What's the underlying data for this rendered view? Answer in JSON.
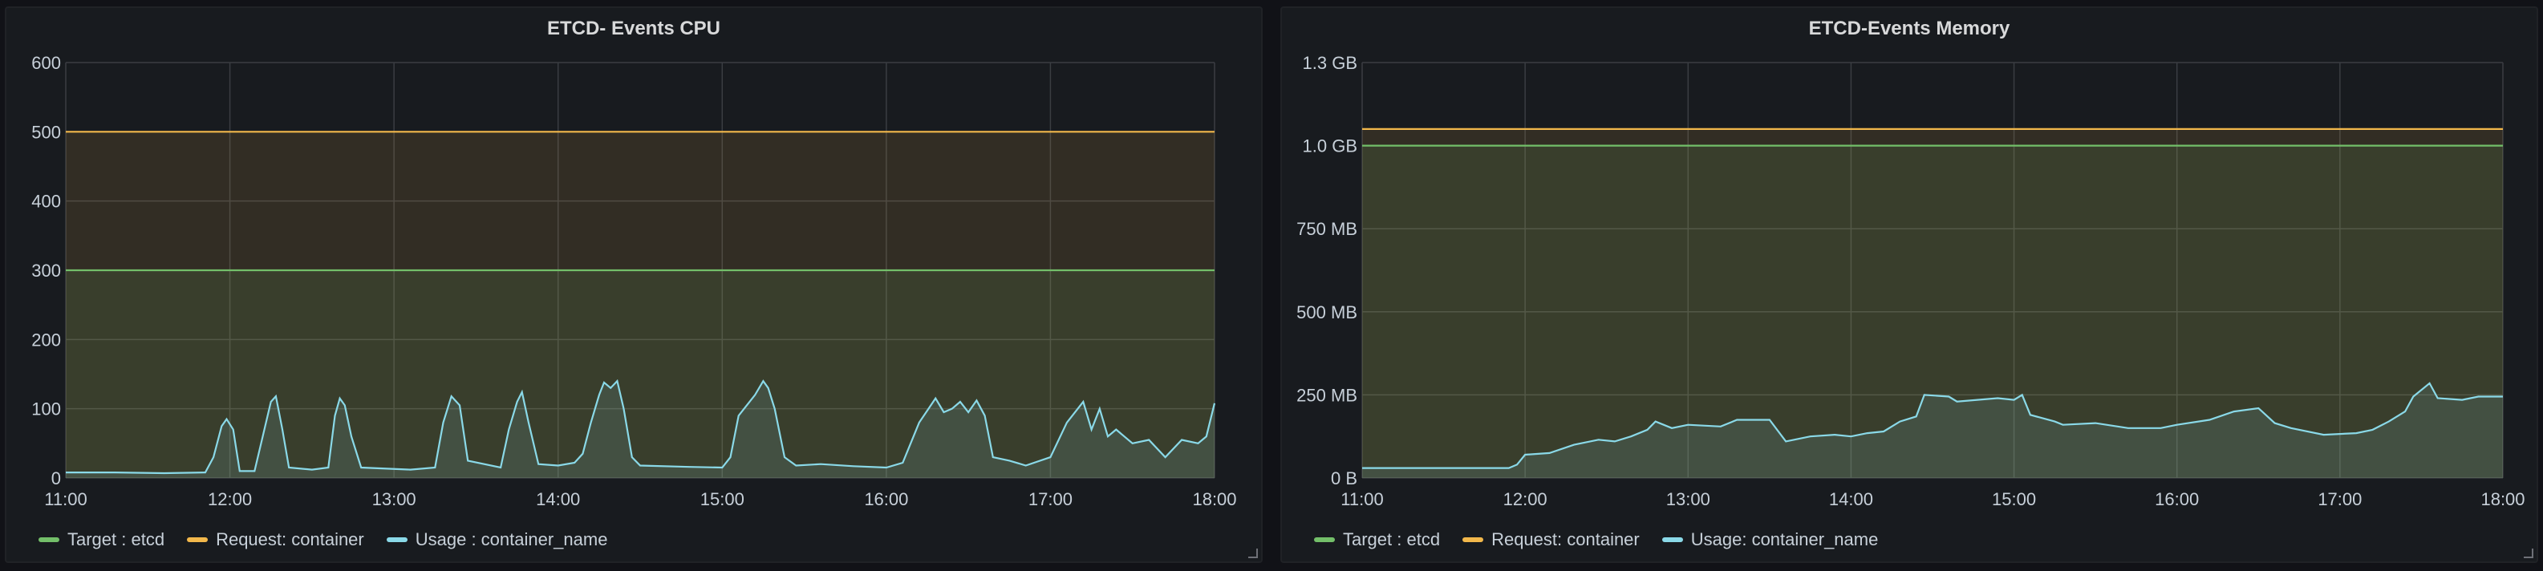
{
  "chart_data": [
    {
      "type": "line",
      "title": "ETCD- Events CPU",
      "xlabel": "",
      "ylabel": "",
      "x_ticks": [
        "11:00",
        "12:00",
        "13:00",
        "14:00",
        "15:00",
        "16:00",
        "17:00",
        "18:00"
      ],
      "y_ticks": [
        "0",
        "100",
        "200",
        "300",
        "400",
        "500",
        "600"
      ],
      "xlim": [
        11,
        18
      ],
      "ylim": [
        0,
        600
      ],
      "grid": true,
      "legend_position": "bottom-left",
      "series": [
        {
          "name": "Target : etcd",
          "color": "#73bf69",
          "fill": true,
          "points": [
            [
              11,
              300
            ],
            [
              18,
              300
            ]
          ]
        },
        {
          "name": "Request: container",
          "color": "#f2b84b",
          "fill": true,
          "points": [
            [
              11,
              500
            ],
            [
              18,
              500
            ]
          ]
        },
        {
          "name": "Usage : container_name",
          "color": "#8ad9e8",
          "fill": true,
          "points": [
            [
              11.0,
              8
            ],
            [
              11.3,
              8
            ],
            [
              11.6,
              7
            ],
            [
              11.85,
              8
            ],
            [
              11.9,
              30
            ],
            [
              11.95,
              75
            ],
            [
              11.98,
              85
            ],
            [
              12.02,
              70
            ],
            [
              12.06,
              10
            ],
            [
              12.15,
              10
            ],
            [
              12.2,
              60
            ],
            [
              12.25,
              110
            ],
            [
              12.28,
              118
            ],
            [
              12.32,
              70
            ],
            [
              12.36,
              15
            ],
            [
              12.5,
              12
            ],
            [
              12.6,
              15
            ],
            [
              12.64,
              90
            ],
            [
              12.67,
              115
            ],
            [
              12.7,
              105
            ],
            [
              12.74,
              60
            ],
            [
              12.8,
              15
            ],
            [
              13.1,
              12
            ],
            [
              13.25,
              15
            ],
            [
              13.3,
              80
            ],
            [
              13.35,
              118
            ],
            [
              13.4,
              105
            ],
            [
              13.45,
              25
            ],
            [
              13.65,
              15
            ],
            [
              13.7,
              70
            ],
            [
              13.75,
              110
            ],
            [
              13.78,
              124
            ],
            [
              13.82,
              80
            ],
            [
              13.88,
              20
            ],
            [
              14.0,
              18
            ],
            [
              14.1,
              22
            ],
            [
              14.15,
              35
            ],
            [
              14.2,
              80
            ],
            [
              14.25,
              120
            ],
            [
              14.28,
              138
            ],
            [
              14.32,
              130
            ],
            [
              14.36,
              140
            ],
            [
              14.4,
              100
            ],
            [
              14.45,
              30
            ],
            [
              14.5,
              18
            ],
            [
              14.8,
              16
            ],
            [
              15.0,
              15
            ],
            [
              15.05,
              30
            ],
            [
              15.1,
              90
            ],
            [
              15.2,
              120
            ],
            [
              15.25,
              140
            ],
            [
              15.28,
              130
            ],
            [
              15.32,
              100
            ],
            [
              15.38,
              30
            ],
            [
              15.45,
              18
            ],
            [
              15.6,
              20
            ],
            [
              15.8,
              17
            ],
            [
              16.0,
              15
            ],
            [
              16.1,
              22
            ],
            [
              16.2,
              80
            ],
            [
              16.3,
              115
            ],
            [
              16.35,
              95
            ],
            [
              16.4,
              100
            ],
            [
              16.45,
              110
            ],
            [
              16.5,
              95
            ],
            [
              16.55,
              112
            ],
            [
              16.6,
              90
            ],
            [
              16.65,
              30
            ],
            [
              16.75,
              25
            ],
            [
              16.85,
              18
            ],
            [
              17.0,
              30
            ],
            [
              17.1,
              80
            ],
            [
              17.2,
              110
            ],
            [
              17.25,
              70
            ],
            [
              17.3,
              100
            ],
            [
              17.35,
              60
            ],
            [
              17.4,
              70
            ],
            [
              17.5,
              50
            ],
            [
              17.6,
              55
            ],
            [
              17.7,
              30
            ],
            [
              17.8,
              55
            ],
            [
              17.9,
              50
            ],
            [
              17.95,
              60
            ],
            [
              18.0,
              108
            ]
          ]
        }
      ]
    },
    {
      "type": "line",
      "title": "ETCD-Events Memory",
      "xlabel": "",
      "ylabel": "",
      "x_ticks": [
        "11:00",
        "12:00",
        "13:00",
        "14:00",
        "15:00",
        "16:00",
        "17:00",
        "18:00"
      ],
      "y_ticks": [
        "0 B",
        "250 MB",
        "500 MB",
        "750 MB",
        "1.0 GB",
        "1.3 GB"
      ],
      "y_tick_values": [
        0,
        250,
        500,
        750,
        1000,
        1250
      ],
      "xlim": [
        11,
        18
      ],
      "ylim": [
        0,
        1250
      ],
      "grid": true,
      "legend_position": "bottom-left",
      "series": [
        {
          "name": "Target : etcd",
          "color": "#73bf69",
          "fill": true,
          "points": [
            [
              11,
              1000
            ],
            [
              18,
              1000
            ]
          ]
        },
        {
          "name": "Request: container",
          "color": "#f2b84b",
          "fill": true,
          "points": [
            [
              11,
              1050
            ],
            [
              18,
              1050
            ]
          ]
        },
        {
          "name": "Usage: container_name",
          "color": "#8ad9e8",
          "fill": true,
          "points": [
            [
              11.0,
              30
            ],
            [
              11.9,
              30
            ],
            [
              11.95,
              40
            ],
            [
              12.0,
              70
            ],
            [
              12.15,
              75
            ],
            [
              12.3,
              100
            ],
            [
              12.45,
              115
            ],
            [
              12.55,
              110
            ],
            [
              12.65,
              125
            ],
            [
              12.75,
              145
            ],
            [
              12.8,
              170
            ],
            [
              12.9,
              150
            ],
            [
              13.0,
              160
            ],
            [
              13.2,
              155
            ],
            [
              13.3,
              175
            ],
            [
              13.5,
              175
            ],
            [
              13.6,
              110
            ],
            [
              13.75,
              125
            ],
            [
              13.9,
              130
            ],
            [
              14.0,
              125
            ],
            [
              14.1,
              135
            ],
            [
              14.2,
              140
            ],
            [
              14.3,
              170
            ],
            [
              14.4,
              185
            ],
            [
              14.45,
              250
            ],
            [
              14.6,
              245
            ],
            [
              14.65,
              230
            ],
            [
              14.9,
              240
            ],
            [
              15.0,
              235
            ],
            [
              15.05,
              250
            ],
            [
              15.1,
              190
            ],
            [
              15.25,
              170
            ],
            [
              15.3,
              160
            ],
            [
              15.5,
              165
            ],
            [
              15.7,
              150
            ],
            [
              15.9,
              150
            ],
            [
              16.0,
              160
            ],
            [
              16.2,
              175
            ],
            [
              16.35,
              200
            ],
            [
              16.5,
              210
            ],
            [
              16.6,
              165
            ],
            [
              16.7,
              150
            ],
            [
              16.9,
              130
            ],
            [
              17.1,
              135
            ],
            [
              17.2,
              145
            ],
            [
              17.3,
              170
            ],
            [
              17.4,
              200
            ],
            [
              17.45,
              245
            ],
            [
              17.55,
              285
            ],
            [
              17.6,
              240
            ],
            [
              17.75,
              235
            ],
            [
              17.85,
              245
            ],
            [
              18.0,
              245
            ]
          ]
        }
      ]
    }
  ]
}
